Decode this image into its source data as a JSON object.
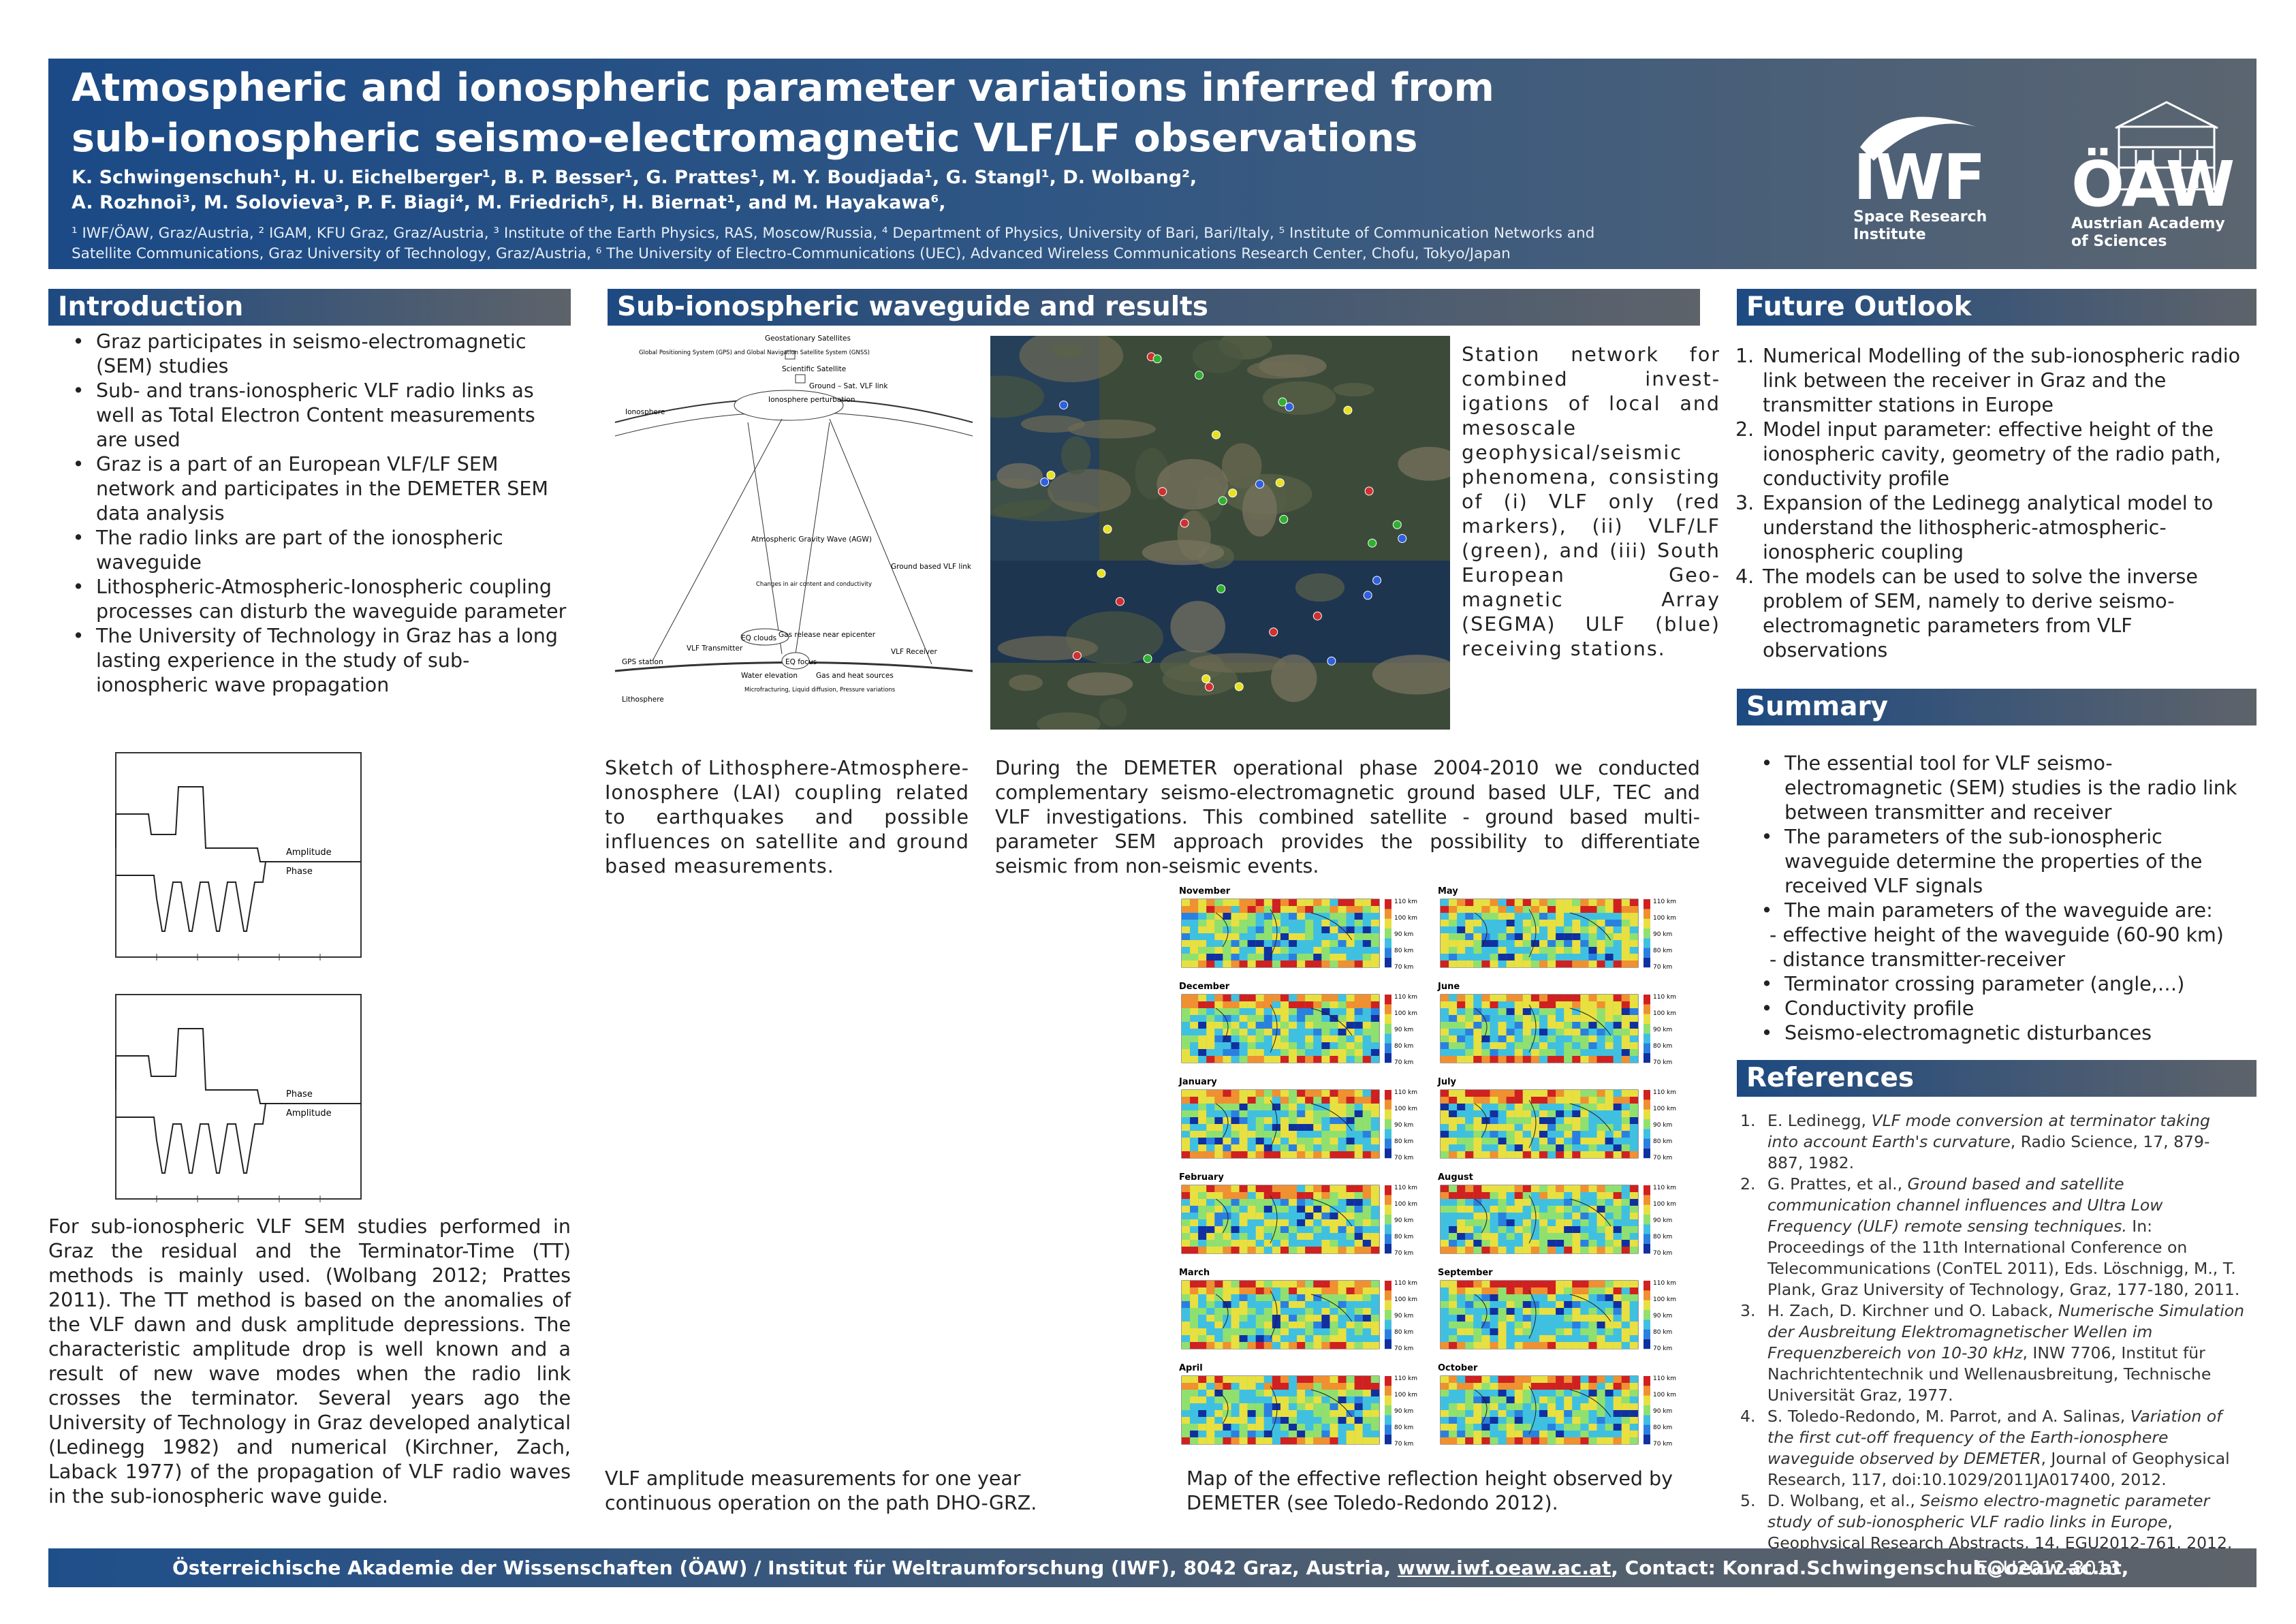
{
  "header": {
    "title_lines": [
      "Atmospheric and ionospheric parameter variations inferred from",
      "sub-ionospheric seismo-electromagnetic VLF/LF observations"
    ],
    "authors_lines": [
      "K. Schwingenschuh¹, H. U. Eichelberger¹, B. P. Besser¹, G. Prattes¹, M. Y. Boudjada¹, G. Stangl¹, D. Wolbang²,",
      "A. Rozhnoi³, M. Solovieva³, P. F. Biagi⁴, M. Friedrich⁵, H. Biernat¹, and M. Hayakawa⁶,"
    ],
    "affiliations_lines": [
      "¹ IWF/ÖAW, Graz/Austria, ² IGAM, KFU Graz, Graz/Austria, ³ Institute of the Earth Physics, RAS, Moscow/Russia, ⁴ Department of Physics, University of Bari, Bari/Italy, ⁵ Institute of Communication Networks and",
      "Satellite Communications, Graz University of Technology, Graz/Austria, ⁶ The University of Electro-Communications (UEC), Advanced Wireless Communications Research Center, Chofu, Tokyo/Japan"
    ],
    "logos": [
      {
        "name": "IWF",
        "caption_lines": [
          "Space Research",
          "Institute"
        ]
      },
      {
        "name": "ÖAW",
        "caption_lines": [
          "Austrian Academy",
          "of Sciences"
        ]
      }
    ]
  },
  "introduction": {
    "heading": "Introduction",
    "bullets": [
      "Graz participates in seismo-electromagnetic (SEM) studies",
      "Sub- and trans-ionospheric VLF radio links as well as Total Electron Content measurements are used",
      "Graz is a part of an European VLF/LF SEM network and participates in the DEMETER SEM data analysis",
      "The radio links are part of the ionospheric waveguide",
      "Lithospheric-Atmospheric-Ionospheric coupling processes can disturb the waveguide parameter",
      "The University of Technology in Graz has a long lasting experience in the study of sub-ionospheric wave propagation"
    ],
    "plot_labels": [
      [
        "Amplitude",
        "Phase"
      ],
      [
        "Phase",
        "Amplitude"
      ]
    ],
    "paragraph": "For sub-ionospheric VLF SEM studies performed in Graz the residual and the Terminator-Time (TT) methods is mainly used. (Wolbang 2012; Prattes 2011). The TT method is based on the anomalies of the VLF dawn and dusk amplitude depressions. The characteristic amplitude drop is well known and a result of new wave modes when the radio link crosses the terminator. Several years ago the University of Technology in Graz developed analytical (Ledinegg 1982) and numerical (Kirchner, Zach, Laback 1977) of the propagation of VLF radio waves in the sub-ionospheric wave guide."
  },
  "waveguide": {
    "heading": "Sub-ionospheric waveguide and results",
    "lai_labels": [
      "Geostationary Satellites",
      "Global Positioning System (GPS) and Global Navigation Satellite System (GNSS)",
      "Scientific Satellite",
      "Ground – Sat. VLF link",
      "Ionosphere",
      "Ionosphere perturbation",
      "Atmospheric Gravity Wave (AGW)",
      "Changes in air content and conductivity",
      "EQ clouds",
      "Gas release near epicenter",
      "EQ focus",
      "Water elevation",
      "Gas and heat sources",
      "Microfracturing, Liquid diffusion, Pressure variations",
      "Ground based VLF link",
      "VLF Transmitter",
      "VLF Receiver",
      "GPS station",
      "Lithosphere"
    ],
    "station_text": "Station network for combined invest-igations of local and mesoscale geophysical/seismic phenomena, consisting of (i) VLF only (red markers), (ii) VLF/LF (green), and (iii) South European Geo-magnetic Array (SEGMA) ULF (blue) receiving stations.",
    "lai_caption": "Sketch of Lithosphere-Atmosphere-Ionosphere (LAI) coupling related to earthquakes and possible influences on satellite and ground based measurements.",
    "demeter_paragraph": "During the DEMETER operational phase 2004-2010 we conducted complementary seismo-electromagnetic ground based ULF, TEC and VLF investigations. This combined satellite - ground based multi-parameter SEM approach provides the possibility to differentiate seismic from non-seismic events.",
    "months": [
      "November",
      "May",
      "December",
      "June",
      "January",
      "July",
      "February",
      "August",
      "March",
      "September",
      "April",
      "October"
    ],
    "colorbar_labels": [
      "110 km",
      "100 km",
      "90 km",
      "80 km",
      "70 km"
    ],
    "vlf_caption": "VLF amplitude measurements for one year continuous operation on the path DHO-GRZ.",
    "map_caption": "Map of the effective reflection height observed by DEMETER (see Toledo-Redondo 2012)."
  },
  "outlook": {
    "heading": "Future Outlook",
    "items": [
      "Numerical Modelling of the sub-ionospheric radio link  between the receiver in Graz and the transmitter stations in Europe",
      "Model input parameter: effective height of the ionospheric cavity, geometry of the radio path, conductivity profile",
      "Expansion of the Ledinegg analytical model to understand the lithospheric-atmospheric-ionospheric coupling",
      "The models can be used to solve the inverse problem of SEM, namely to derive seismo-electromagnetic parameters from VLF observations"
    ]
  },
  "summary": {
    "heading": "Summary",
    "items": [
      {
        "text": "The essential tool for VLF seismo-electromagnetic (SEM) studies is the radio link between transmitter and receiver"
      },
      {
        "text": "The parameters of the sub-ionospheric waveguide determine the properties of the received VLF signals"
      },
      {
        "text": "The main parameters of the waveguide are:",
        "subitems": [
          "effective height of the waveguide (60-90 km)",
          "distance transmitter-receiver"
        ]
      },
      {
        "text": "Terminator crossing parameter (angle,…)"
      },
      {
        "text": "Conductivity profile"
      },
      {
        "text": "Seismo-electromagnetic disturbances"
      }
    ]
  },
  "references": {
    "heading": "References",
    "items": [
      [
        {
          "text": "E. Ledinegg, ",
          "italic": false
        },
        {
          "text": "VLF mode conversion at terminator taking into account Earth's curvature",
          "italic": true
        },
        {
          "text": ", Radio Science, 17, 879-887, 1982.",
          "italic": false
        }
      ],
      [
        {
          "text": "G. Prattes, et al., ",
          "italic": false
        },
        {
          "text": "Ground based and satellite communication channel influences and Ultra Low Frequency (ULF) remote sensing techniques.",
          "italic": true
        },
        {
          "text": " In: Proceedings of the 11th International Conference on Telecommunications (ConTEL 2011), Eds. Löschnigg, M., T. Plank, Graz University of Technology, Graz, 177-180, 2011.",
          "italic": false
        }
      ],
      [
        {
          "text": "H. Zach, D. Kirchner und O. Laback, ",
          "italic": false
        },
        {
          "text": "Numerische Simulation der Ausbreitung Elektromagnetischer Wellen im Frequenzbereich von 10-30 kHz",
          "italic": true
        },
        {
          "text": ", INW 7706, Institut für Nachrichtentechnik und Wellenausbreitung, Technische Universität Graz, 1977.",
          "italic": false
        }
      ],
      [
        {
          "text": "S. Toledo-Redondo, M. Parrot, and A. Salinas, ",
          "italic": false
        },
        {
          "text": "Variation of the first cut-off frequency of the Earth-ionosphere waveguide observed by DEMETER",
          "italic": true
        },
        {
          "text": ", Journal of Geophysical Research, 117, doi:10.1029/2011JA017400, 2012.",
          "italic": false
        }
      ],
      [
        {
          "text": "D. Wolbang, et al., ",
          "italic": false
        },
        {
          "text": "Seismo electro-magnetic parameter study of sub-ionospheric VLF radio links in Europe",
          "italic": true
        },
        {
          "text": ", Geophysical Research Abstracts, 14, EGU2012-761, 2012.",
          "italic": false
        }
      ]
    ]
  },
  "footer": {
    "text_before_link": "Österreichische Akademie der Wissenschaften (ÖAW) / Institut für Weltraumforschung (IWF), 8042 Graz, Austria, ",
    "link": "www.iwf.oeaw.ac.at",
    "text_after_link": ", Contact: Konrad.Schwingenschuh@oeaw.ac.at,",
    "code": "EGU2012-8013"
  }
}
